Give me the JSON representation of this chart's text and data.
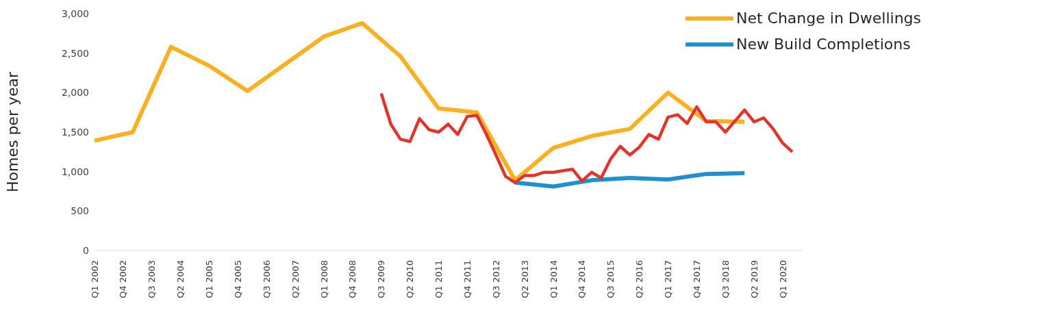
{
  "chart_data": {
    "type": "line",
    "ylabel": "Homes per year",
    "categories": [
      "Q1 2002",
      null,
      null,
      "Q4 2002",
      null,
      null,
      "Q3 2003",
      null,
      null,
      "Q2 2004",
      null,
      null,
      "Q1 2005",
      null,
      null,
      "Q4 2005",
      null,
      null,
      "Q3 2006",
      null,
      null,
      "Q2 2007",
      null,
      null,
      "Q1 2008",
      null,
      null,
      "Q4 2008",
      null,
      null,
      "Q3 2009",
      null,
      null,
      "Q2 2010",
      null,
      null,
      "Q1 2011",
      null,
      null,
      "Q4 2011",
      null,
      null,
      "Q3 2012",
      null,
      null,
      "Q2 2013",
      null,
      null,
      "Q1 2014",
      null,
      null,
      "Q4 2014",
      null,
      null,
      "Q3 2015",
      null,
      null,
      "Q2 2016",
      null,
      null,
      "Q1 2017",
      null,
      null,
      "Q4 2017",
      null,
      null,
      "Q3 2018",
      null,
      null,
      "Q2 2019",
      null,
      null,
      "Q1 2020",
      null,
      null
    ],
    "series": [
      {
        "name": "Net Change in Dwellings",
        "color": "#fbb022",
        "values": [
          1390,
          null,
          null,
          null,
          1500,
          null,
          null,
          null,
          2580,
          null,
          null,
          null,
          2340,
          null,
          null,
          null,
          2020,
          null,
          null,
          null,
          null,
          null,
          null,
          null,
          2710,
          null,
          null,
          null,
          2880,
          null,
          null,
          null,
          2460,
          null,
          null,
          null,
          1800,
          null,
          null,
          null,
          1750,
          null,
          null,
          null,
          890,
          null,
          null,
          null,
          1300,
          null,
          null,
          null,
          1450,
          null,
          null,
          null,
          1540,
          null,
          null,
          null,
          2000,
          null,
          null,
          null,
          1640,
          null,
          null,
          null,
          1630,
          null,
          null,
          null,
          null,
          null,
          null
        ]
      },
      {
        "name": "New Build Completions",
        "color": "#1e8fcf",
        "values": [
          null,
          null,
          null,
          null,
          null,
          null,
          null,
          null,
          null,
          null,
          null,
          null,
          null,
          null,
          null,
          null,
          null,
          null,
          null,
          null,
          null,
          null,
          null,
          null,
          null,
          null,
          null,
          null,
          null,
          null,
          null,
          null,
          null,
          null,
          null,
          null,
          null,
          null,
          null,
          null,
          null,
          null,
          null,
          null,
          860,
          null,
          null,
          null,
          810,
          null,
          null,
          null,
          890,
          null,
          null,
          null,
          920,
          null,
          null,
          null,
          900,
          null,
          null,
          null,
          970,
          null,
          null,
          null,
          980,
          null,
          null,
          null,
          null,
          null,
          null
        ]
      },
      {
        "color": "#e2352a",
        "values": [
          null,
          null,
          null,
          null,
          null,
          null,
          null,
          null,
          null,
          null,
          null,
          null,
          null,
          null,
          null,
          null,
          null,
          null,
          null,
          null,
          null,
          null,
          null,
          null,
          null,
          null,
          null,
          null,
          null,
          null,
          1990,
          1600,
          1410,
          1380,
          1670,
          1530,
          1500,
          1600,
          1470,
          1700,
          1710,
          1470,
          1210,
          940,
          860,
          950,
          950,
          990,
          990,
          1010,
          1030,
          880,
          990,
          920,
          1160,
          1320,
          1210,
          1310,
          1470,
          1410,
          1690,
          1720,
          1610,
          1820,
          1630,
          1630,
          1500,
          1640,
          1780,
          1630,
          1680,
          1540,
          1360,
          1250,
          null
        ]
      }
    ],
    "ylim": [
      0,
      3000
    ],
    "yticks": [
      {
        "value": 0,
        "label": "0"
      },
      {
        "value": 500,
        "label": "500"
      },
      {
        "value": 1000,
        "label": "1,000"
      },
      {
        "value": 1500,
        "label": "1,500"
      },
      {
        "value": 2000,
        "label": "2,000"
      },
      {
        "value": 2500,
        "label": "2,500"
      },
      {
        "value": 3000,
        "label": "3,000"
      }
    ],
    "grid": false,
    "legend": "top right",
    "marker": "none",
    "line_style": "solid"
  }
}
